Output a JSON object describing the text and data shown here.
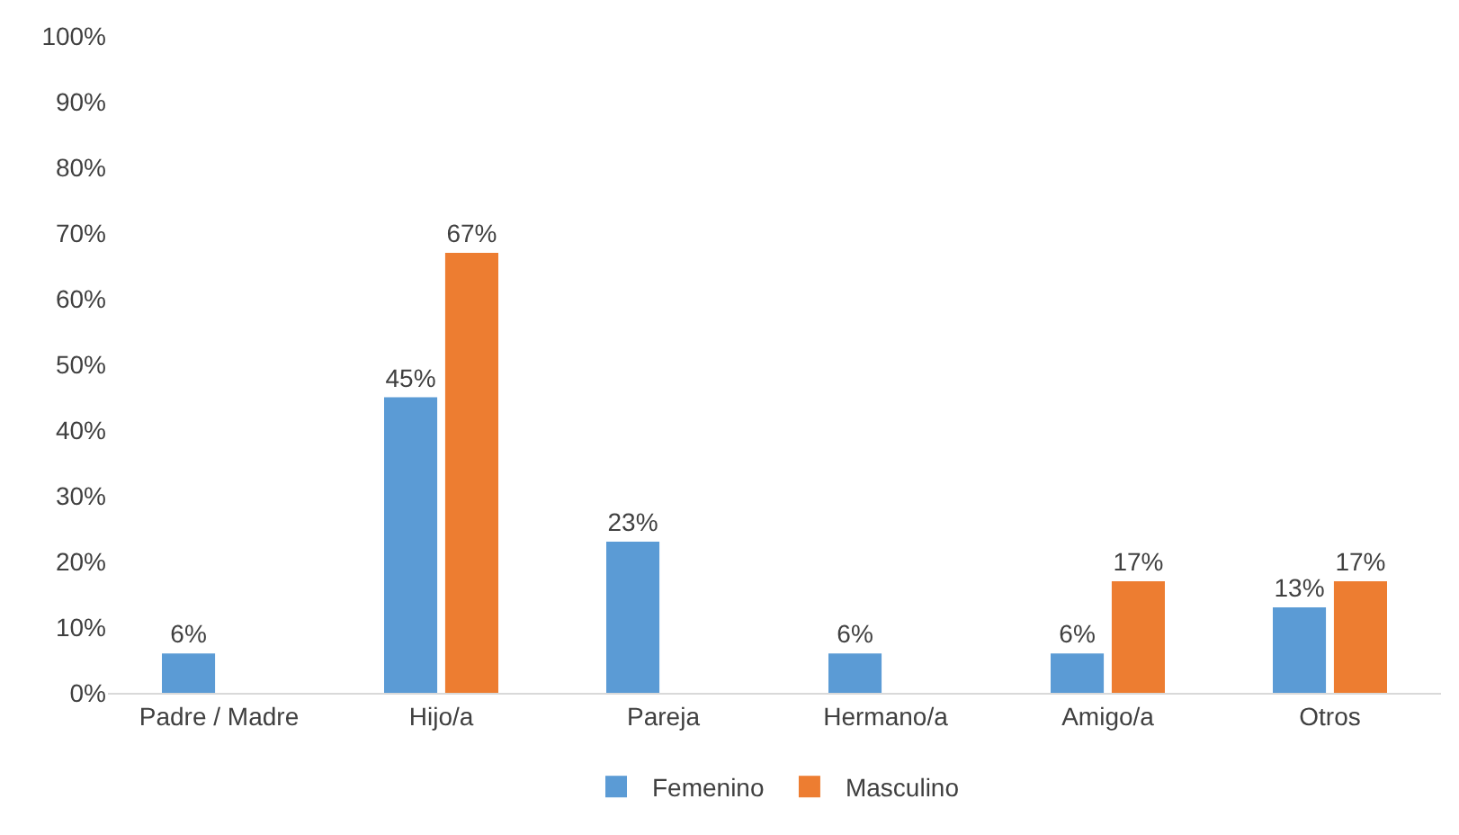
{
  "chart_data": {
    "type": "bar",
    "categories": [
      "Padre / Madre",
      "Hijo/a",
      "Pareja",
      "Hermano/a",
      "Amigo/a",
      "Otros"
    ],
    "series": [
      {
        "name": "Femenino",
        "color": "#5b9bd5",
        "values": [
          6,
          45,
          23,
          6,
          6,
          13
        ],
        "value_labels": [
          "6%",
          "45%",
          "23%",
          "6%",
          "6%",
          "13%"
        ]
      },
      {
        "name": "Masculino",
        "color": "#ed7d31",
        "values": [
          null,
          67,
          null,
          null,
          17,
          17
        ],
        "value_labels": [
          null,
          "67%",
          null,
          null,
          "17%",
          "17%"
        ]
      }
    ],
    "ylim": [
      0,
      100
    ],
    "yticks": [
      {
        "value": 0,
        "label": "0%"
      },
      {
        "value": 10,
        "label": "10%"
      },
      {
        "value": 20,
        "label": "20%"
      },
      {
        "value": 30,
        "label": "30%"
      },
      {
        "value": 40,
        "label": "40%"
      },
      {
        "value": 50,
        "label": "50%"
      },
      {
        "value": 60,
        "label": "60%"
      },
      {
        "value": 70,
        "label": "70%"
      },
      {
        "value": 80,
        "label": "80%"
      },
      {
        "value": 90,
        "label": "90%"
      },
      {
        "value": 100,
        "label": "100%"
      }
    ],
    "grid": false,
    "legend": "bottom"
  }
}
